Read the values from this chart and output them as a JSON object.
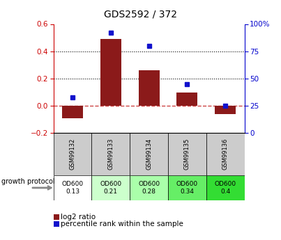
{
  "title": "GDS2592 / 372",
  "samples": [
    "GSM99132",
    "GSM99133",
    "GSM99134",
    "GSM99135",
    "GSM99136"
  ],
  "log2_ratio": [
    -0.09,
    0.49,
    0.26,
    0.1,
    -0.06
  ],
  "percentile_rank": [
    33,
    92,
    80,
    45,
    25
  ],
  "left_ylim": [
    -0.2,
    0.6
  ],
  "right_ylim": [
    0,
    100
  ],
  "left_yticks": [
    -0.2,
    0.0,
    0.2,
    0.4,
    0.6
  ],
  "right_yticks": [
    0,
    25,
    50,
    75,
    100
  ],
  "dotted_lines": [
    0.2,
    0.4
  ],
  "bar_color": "#8B1A1A",
  "dot_color": "#1111CC",
  "zero_line_color": "#CC4444",
  "protocol_label": "growth protocol",
  "od600_values": [
    "OD600\n0.13",
    "OD600\n0.21",
    "OD600\n0.28",
    "OD600\n0.34",
    "OD600\n0.4"
  ],
  "od_colors": [
    "#ffffff",
    "#ccffcc",
    "#aaffaa",
    "#66ee66",
    "#33dd33"
  ],
  "legend_bar_label": "log2 ratio",
  "legend_dot_label": "percentile rank within the sample",
  "sample_bg_color": "#cccccc",
  "left_axis_color": "#CC0000",
  "right_axis_color": "#0000CC"
}
